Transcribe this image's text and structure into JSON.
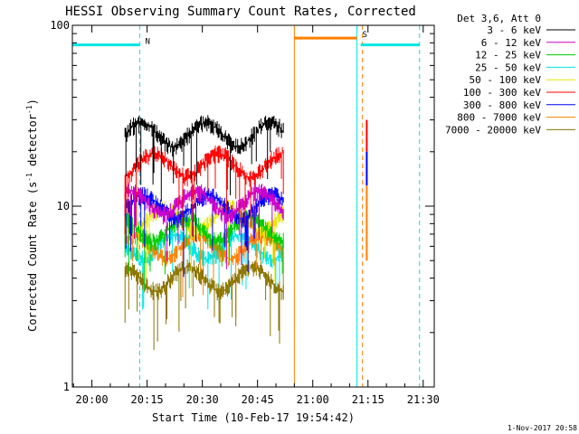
{
  "chart_data": {
    "type": "line",
    "title": "HESSI Observing Summary Count Rates, Corrected",
    "xlabel": "Start Time (10-Feb-17 19:54:42)",
    "ylabel_main": "Corrected Count Rate (s",
    "ylabel_sup1": "-1",
    "ylabel_mid": " detector",
    "ylabel_sup2": "-1",
    "ylabel_end": ")",
    "yscale": "log",
    "ylim": [
      1,
      100
    ],
    "xlim": [
      "19:54:42",
      "21:33:00"
    ],
    "x_ticks": [
      "20:00",
      "20:15",
      "20:30",
      "20:45",
      "21:00",
      "21:15",
      "21:30"
    ],
    "y_ticks": [
      "1",
      "10",
      "100"
    ],
    "footer": "1-Nov-2017 20:58",
    "legend_title": "Det 3,6, Att 0",
    "legend_placement": "top-right",
    "series": [
      {
        "name": "3 - 6 keV",
        "color": "#000000",
        "start": "20:09",
        "end": "20:52",
        "typical": 25
      },
      {
        "name": "6 - 12 keV",
        "color": "#cc00cc",
        "start": "20:09",
        "end": "20:52",
        "typical": 10.5
      },
      {
        "name": "12 - 25 keV",
        "color": "#00cc00",
        "start": "20:09",
        "end": "20:52",
        "typical": 7.5
      },
      {
        "name": "25 - 50 keV",
        "color": "#00e5e5",
        "start": "20:09",
        "end": "20:52",
        "typical": 6
      },
      {
        "name": "50 - 100 keV",
        "color": "#e5e500",
        "start": "20:09",
        "end": "20:52",
        "typical": 8.5
      },
      {
        "name": "100 - 300 keV",
        "color": "#ff0000",
        "start": "20:09",
        "end": "20:52",
        "typical": 17
      },
      {
        "name": "300 - 800 keV",
        "color": "#0000ff",
        "start": "20:09",
        "end": "20:52",
        "typical": 10
      },
      {
        "name": "800 - 7000 keV",
        "color": "#ff8000",
        "start": "20:09",
        "end": "20:52",
        "typical": 6
      },
      {
        "name": "7000 - 20000 keV",
        "color": "#8b7500",
        "start": "20:09",
        "end": "20:52",
        "typical": 4
      }
    ],
    "annotations": [
      {
        "label": "N",
        "color": "#00e5e5",
        "start": "19:54:42",
        "end": "20:13",
        "level": 78
      },
      {
        "label": "S",
        "color": "#ff8000",
        "start": "20:55",
        "end": "21:12",
        "level": 85
      },
      {
        "label": "",
        "color": "#00e5e5",
        "start": "21:13",
        "end": "21:29",
        "level": 78
      }
    ],
    "marker_lines": [
      {
        "time": "19:54:42",
        "color": "#00e5e5",
        "style": "solid"
      },
      {
        "time": "20:13",
        "color": "#00e5e5",
        "style": "dashed"
      },
      {
        "time": "20:55",
        "color": "#ff8000",
        "style": "solid"
      },
      {
        "time": "21:12",
        "color": "#00e5e5",
        "style": "solid"
      },
      {
        "time": "21:13:30",
        "color": "#ff8000",
        "style": "dashed"
      },
      {
        "time": "21:29",
        "color": "#00e5e5",
        "style": "dashed"
      }
    ]
  }
}
